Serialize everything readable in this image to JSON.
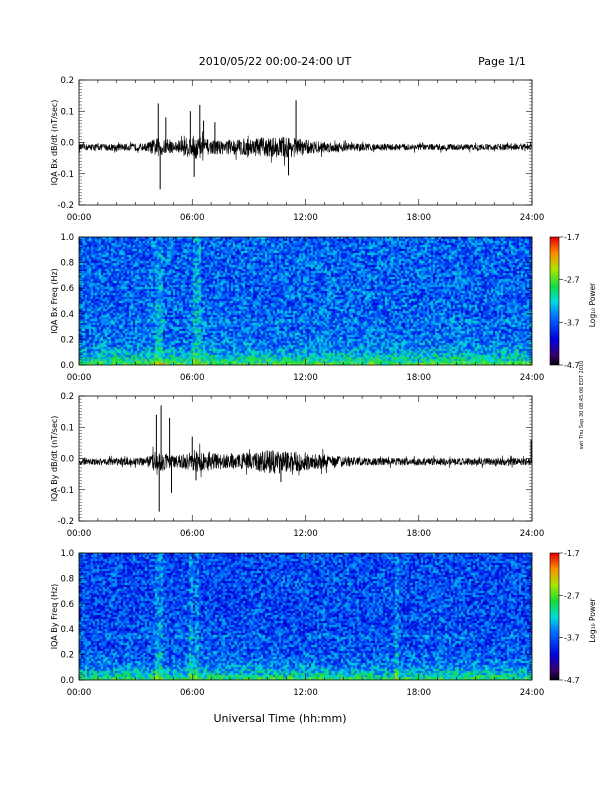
{
  "header": {
    "title": "2010/05/22  00:00-24:00 UT",
    "page": "Page 1/1"
  },
  "side_note": "swt Thu Sep 30 08:45:06 EDT 2010",
  "xlabel": "Universal Time (hh:mm)",
  "x_ticks": [
    "00:00",
    "06:00",
    "12:00",
    "18:00",
    "24:00"
  ],
  "colors": {
    "trace": "#000000",
    "background": "#ffffff"
  },
  "chart_data": [
    {
      "type": "line",
      "ylabel": "IQA Bx dB/dt (nT/sec)",
      "xlim": [
        0,
        24
      ],
      "ylim": [
        -0.2,
        0.2
      ],
      "y_ticks": [
        "0.2",
        "0.1",
        "0.0",
        "-0.1",
        "-0.2"
      ],
      "baseline": -0.015,
      "noise_envelope": [
        {
          "x": 0,
          "amp": 0.01
        },
        {
          "x": 3.5,
          "amp": 0.012
        },
        {
          "x": 4.1,
          "amp": 0.03
        },
        {
          "x": 5,
          "amp": 0.018
        },
        {
          "x": 6.2,
          "amp": 0.04
        },
        {
          "x": 7,
          "amp": 0.022
        },
        {
          "x": 9,
          "amp": 0.028
        },
        {
          "x": 11,
          "amp": 0.035
        },
        {
          "x": 12.5,
          "amp": 0.02
        },
        {
          "x": 15,
          "amp": 0.012
        },
        {
          "x": 18,
          "amp": 0.01
        },
        {
          "x": 24,
          "amp": 0.01
        }
      ],
      "spikes": [
        {
          "x": 4.2,
          "y": 0.125
        },
        {
          "x": 4.3,
          "y": -0.15
        },
        {
          "x": 4.6,
          "y": 0.08
        },
        {
          "x": 5.9,
          "y": 0.1
        },
        {
          "x": 6.1,
          "y": -0.11
        },
        {
          "x": 6.4,
          "y": 0.12
        },
        {
          "x": 6.6,
          "y": 0.07
        },
        {
          "x": 7.2,
          "y": 0.065
        },
        {
          "x": 11.1,
          "y": -0.105
        },
        {
          "x": 11.5,
          "y": 0.135
        }
      ]
    },
    {
      "type": "heatmap",
      "ylabel": "IQA Bx Freq (Hz)",
      "xlim": [
        0,
        24
      ],
      "ylim": [
        0,
        1
      ],
      "y_ticks": [
        "1.0",
        "0.8",
        "0.6",
        "0.4",
        "0.2",
        "0.0"
      ],
      "colorbar": {
        "label": "Log₁₀ Power",
        "ticks": [
          "-1.7",
          "-2.7",
          "-3.7",
          "-4.7"
        ],
        "range": [
          -4.7,
          -1.7
        ]
      },
      "enhanced_times": [
        4.1,
        4.3,
        6.1,
        6.3
      ],
      "background_level": -3.65,
      "low_freq_level": -2.6
    },
    {
      "type": "line",
      "ylabel": "IQA By dB/dt (nT/sec)",
      "xlim": [
        0,
        24
      ],
      "ylim": [
        -0.2,
        0.2
      ],
      "y_ticks": [
        "0.2",
        "0.1",
        "0.0",
        "-0.1",
        "-0.2"
      ],
      "baseline": -0.01,
      "noise_envelope": [
        {
          "x": 0,
          "amp": 0.01
        },
        {
          "x": 3.5,
          "amp": 0.012
        },
        {
          "x": 4.1,
          "amp": 0.035
        },
        {
          "x": 5,
          "amp": 0.018
        },
        {
          "x": 6.2,
          "amp": 0.035
        },
        {
          "x": 8,
          "amp": 0.022
        },
        {
          "x": 10.5,
          "amp": 0.04
        },
        {
          "x": 12.5,
          "amp": 0.025
        },
        {
          "x": 15,
          "amp": 0.012
        },
        {
          "x": 18,
          "amp": 0.012
        },
        {
          "x": 24,
          "amp": 0.011
        }
      ],
      "spikes": [
        {
          "x": 4.1,
          "y": 0.14
        },
        {
          "x": 4.25,
          "y": -0.17
        },
        {
          "x": 4.35,
          "y": 0.17
        },
        {
          "x": 4.8,
          "y": 0.13
        },
        {
          "x": 4.9,
          "y": -0.11
        },
        {
          "x": 6.0,
          "y": 0.07
        },
        {
          "x": 6.2,
          "y": -0.07
        },
        {
          "x": 10.7,
          "y": -0.075
        },
        {
          "x": 23.95,
          "y": 0.06
        }
      ]
    },
    {
      "type": "heatmap",
      "ylabel": "IQA By Freq (Hz)",
      "xlim": [
        0,
        24
      ],
      "ylim": [
        0,
        1
      ],
      "y_ticks": [
        "1.0",
        "0.8",
        "0.6",
        "0.4",
        "0.2",
        "0.0"
      ],
      "colorbar": {
        "label": "Log₁₀ Power",
        "ticks": [
          "-1.7",
          "-2.7",
          "-3.7",
          "-4.7"
        ],
        "range": [
          -4.7,
          -1.7
        ]
      },
      "enhanced_times": [
        4.1,
        4.3,
        5.9,
        6.2,
        16.8
      ],
      "background_level": -3.75,
      "low_freq_level": -2.7
    }
  ]
}
